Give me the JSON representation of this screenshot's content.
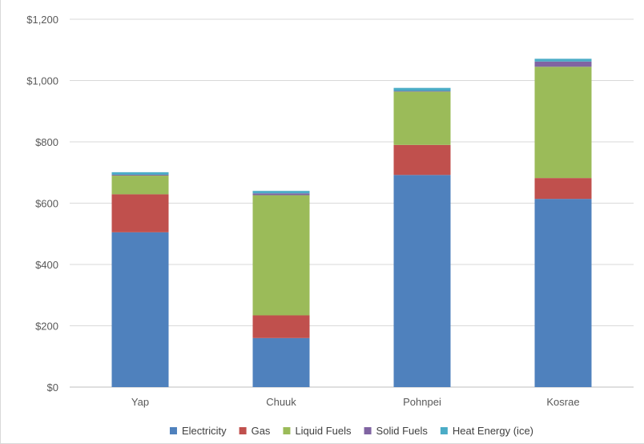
{
  "chart_data": {
    "type": "bar",
    "stacked": true,
    "categories": [
      "Yap",
      "Chuuk",
      "Pohnpei",
      "Kosrae"
    ],
    "series": [
      {
        "name": "Electricity",
        "color": "#4f81bd",
        "values": [
          505,
          160,
          692,
          614
        ]
      },
      {
        "name": "Gas",
        "color": "#c0504d",
        "values": [
          124,
          74,
          98,
          68
        ]
      },
      {
        "name": "Liquid Fuels",
        "color": "#9bbb59",
        "values": [
          61,
          392,
          174,
          363
        ]
      },
      {
        "name": "Solid Fuels",
        "color": "#8064a2",
        "values": [
          3,
          6,
          2,
          17
        ]
      },
      {
        "name": "Heat Energy (ice)",
        "color": "#4bacc6",
        "values": [
          8,
          8,
          10,
          9
        ]
      }
    ],
    "y_ticks": [
      "$0",
      "$200",
      "$400",
      "$600",
      "$800",
      "$1,000",
      "$1,200"
    ],
    "ylim": [
      0,
      1200
    ],
    "grid": true,
    "legend_position": "bottom"
  }
}
